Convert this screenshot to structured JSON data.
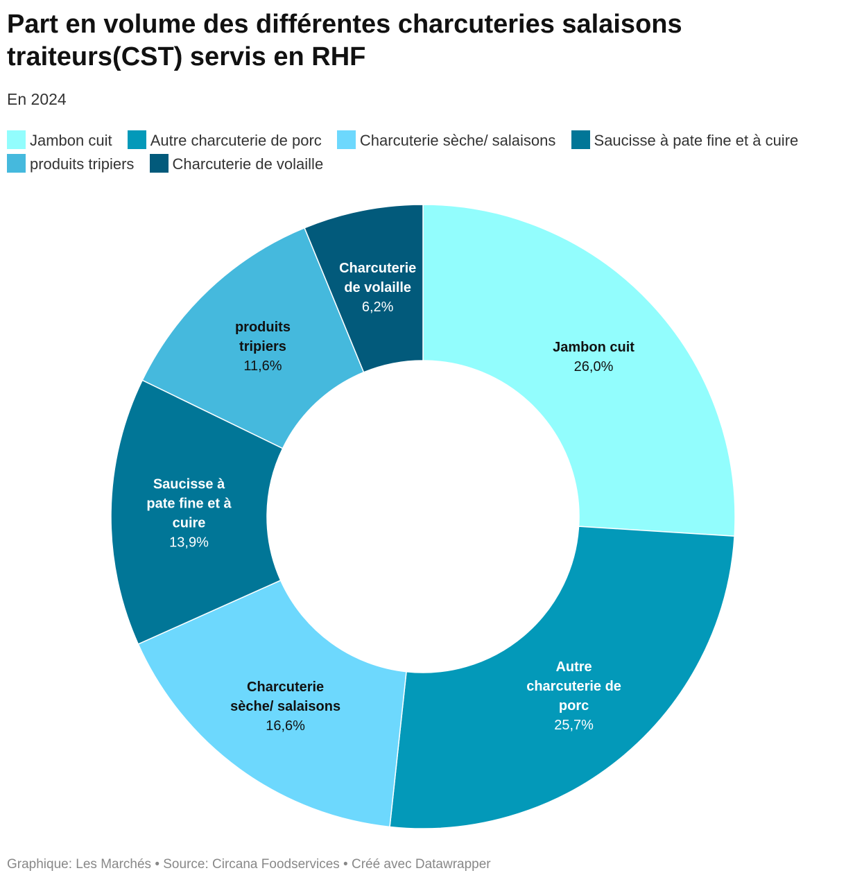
{
  "title": "Part en volume des différentes charcuteries salaisons traiteurs(CST) servis en RHF",
  "subtitle": "En 2024",
  "footer": "Graphique: Les Marchés • Source: Circana Foodservices • Créé avec Datawrapper",
  "chart_data": {
    "type": "pie",
    "donut": true,
    "legend_placement": "top",
    "slices": [
      {
        "name": "Jambon cuit",
        "value": 26.0,
        "label": "26,0%",
        "color": "#92fdfd",
        "text_color": "#111111",
        "label_lines": [
          "Jambon cuit"
        ]
      },
      {
        "name": "Autre charcuterie de porc",
        "value": 25.7,
        "label": "25,7%",
        "color": "#0399b9",
        "text_color": "#ffffff",
        "label_lines": [
          "Autre",
          "charcuterie de",
          "porc"
        ]
      },
      {
        "name": "Charcuterie sèche/ salaisons",
        "value": 16.6,
        "label": "16,6%",
        "color": "#6dd8fd",
        "text_color": "#111111",
        "label_lines": [
          "Charcuterie",
          "sèche/ salaisons"
        ]
      },
      {
        "name": "Saucisse à pate fine et à cuire",
        "value": 13.9,
        "label": "13,9%",
        "color": "#017697",
        "text_color": "#ffffff",
        "label_lines": [
          "Saucisse à",
          "pate fine et à",
          "cuire"
        ]
      },
      {
        "name": "produits tripiers",
        "value": 11.6,
        "label": "11,6%",
        "color": "#45b9dd",
        "text_color": "#111111",
        "label_lines": [
          "produits",
          "tripiers"
        ]
      },
      {
        "name": "Charcuterie de volaille",
        "value": 6.2,
        "label": "6,2%",
        "color": "#025a7b",
        "text_color": "#ffffff",
        "label_lines": [
          "Charcuterie",
          "de volaille"
        ]
      }
    ]
  }
}
